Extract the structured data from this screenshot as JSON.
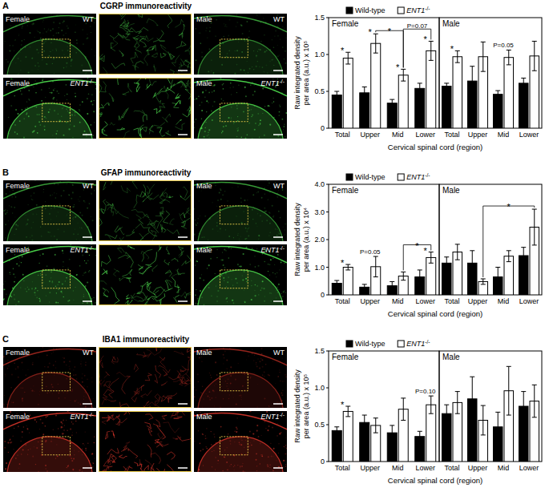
{
  "chart_data": [
    {
      "type": "bar",
      "title": "Female",
      "categories": [
        "Total",
        "Upper",
        "Mid",
        "Lower"
      ],
      "series": [
        {
          "name": "Wild-type",
          "color": "#000000",
          "values": [
            0.45,
            0.48,
            0.34,
            0.54
          ],
          "errors": [
            0.05,
            0.08,
            0.05,
            0.07
          ]
        },
        {
          "name": "ENT1-/-",
          "color": "#ffffff",
          "values": [
            0.95,
            1.15,
            0.72,
            1.05
          ],
          "errors": [
            0.08,
            0.13,
            0.08,
            0.13
          ]
        }
      ],
      "ylim": [
        0,
        1.5
      ],
      "yticks": [
        0,
        0.5,
        {
          "value": 1,
          "label": "1.0"
        },
        1.5
      ],
      "ylabel": [
        "Raw integrated density",
        "per area (a.u.) x 10⁵"
      ],
      "xlabel": "Cervical spinal cord (region)",
      "legend": "top",
      "annotations": [
        {
          "text": "*",
          "from": [
            0,
            0
          ],
          "to": [
            0,
            1
          ]
        },
        {
          "text": "*",
          "from": [
            1,
            0
          ],
          "to": [
            1,
            1
          ]
        },
        {
          "text": "*",
          "from": [
            2,
            0
          ],
          "to": [
            2,
            1
          ]
        },
        {
          "text": "*",
          "from": [
            3,
            0
          ],
          "to": [
            3,
            1
          ]
        },
        {
          "text": "*",
          "from": [
            1,
            1
          ],
          "to": [
            2,
            1
          ]
        },
        {
          "text": "P=0.07",
          "from": [
            2,
            1
          ],
          "to": [
            3,
            1
          ]
        }
      ]
    },
    {
      "type": "bar",
      "title": "Male",
      "categories": [
        "Total",
        "Upper",
        "Mid",
        "Lower"
      ],
      "series": [
        {
          "name": "Wild-type",
          "color": "#000000",
          "values": [
            0.57,
            0.64,
            0.46,
            0.61
          ],
          "errors": [
            0.04,
            0.2,
            0.05,
            0.07
          ]
        },
        {
          "name": "ENT1-/-",
          "color": "#ffffff",
          "values": [
            0.97,
            0.97,
            0.96,
            0.98
          ],
          "errors": [
            0.08,
            0.2,
            0.1,
            0.2
          ]
        }
      ],
      "ylim": [
        0,
        1.5
      ],
      "tick_labels": "x",
      "annotations": [
        {
          "text": "*",
          "from": [
            0,
            0
          ],
          "to": [
            0,
            1
          ]
        },
        {
          "text": "P=0.05",
          "from": [
            2,
            0
          ],
          "to": [
            2,
            1
          ]
        }
      ]
    },
    {
      "type": "bar",
      "title": "Female",
      "categories": [
        "Total",
        "Upper",
        "Mid",
        "Lower"
      ],
      "series": [
        {
          "name": "Wild-type",
          "color": "#000000",
          "values": [
            0.42,
            0.28,
            0.33,
            0.65
          ],
          "errors": [
            0.1,
            0.1,
            0.15,
            0.25
          ]
        },
        {
          "name": "ENT1-/-",
          "color": "#ffffff",
          "values": [
            1.0,
            1.02,
            0.68,
            1.35
          ],
          "errors": [
            0.1,
            0.37,
            0.15,
            0.2
          ]
        }
      ],
      "ylim": [
        0,
        4
      ],
      "yticks": [
        0,
        {
          "value": 1,
          "label": "1.0"
        },
        {
          "value": 2,
          "label": "2.0"
        },
        {
          "value": 3,
          "label": "3.0"
        },
        {
          "value": 4,
          "label": "4.0"
        }
      ],
      "ylabel": [
        "Raw integrated density",
        "per area (a.u.) x 10⁴"
      ],
      "xlabel": "Cervical spinal cord (region)",
      "legend": "top",
      "annotations": [
        {
          "text": "*",
          "from": [
            0,
            0
          ],
          "to": [
            0,
            1
          ]
        },
        {
          "text": "P=0.05",
          "from": [
            1,
            0
          ],
          "to": [
            1,
            1
          ]
        },
        {
          "text": "*",
          "from": [
            3,
            0
          ],
          "to": [
            3,
            1
          ]
        },
        {
          "text": "*",
          "from": [
            2,
            1
          ],
          "to": [
            3,
            1
          ]
        }
      ]
    },
    {
      "type": "bar",
      "title": "Male",
      "categories": [
        "Total",
        "Upper",
        "Mid",
        "Lower"
      ],
      "series": [
        {
          "name": "Wild-type",
          "color": "#000000",
          "values": [
            1.15,
            1.15,
            0.65,
            1.42
          ],
          "errors": [
            0.22,
            0.45,
            0.35,
            0.3
          ]
        },
        {
          "name": "ENT1-/-",
          "color": "#ffffff",
          "values": [
            1.55,
            0.48,
            1.4,
            2.45
          ],
          "errors": [
            0.28,
            0.1,
            0.2,
            0.65
          ]
        }
      ],
      "ylim": [
        0,
        4
      ],
      "tick_labels": "x",
      "annotations": [
        {
          "text": "*",
          "from": [
            1,
            1
          ],
          "to": [
            3,
            1
          ]
        }
      ]
    },
    {
      "type": "bar",
      "title": "Female",
      "categories": [
        "Total",
        "Upper",
        "Mid",
        "Lower"
      ],
      "series": [
        {
          "name": "Wild-type",
          "color": "#000000",
          "values": [
            0.42,
            0.53,
            0.39,
            0.34
          ],
          "errors": [
            0.05,
            0.1,
            0.1,
            0.07
          ]
        },
        {
          "name": "ENT1-/-",
          "color": "#ffffff",
          "values": [
            0.68,
            0.49,
            0.71,
            0.77
          ],
          "errors": [
            0.07,
            0.1,
            0.15,
            0.12
          ]
        }
      ],
      "ylim": [
        0,
        1.5
      ],
      "yticks": [
        0,
        0.5,
        {
          "value": 1,
          "label": "1.0"
        },
        1.5
      ],
      "ylabel": [
        "Raw integrated density",
        "per area (a.u.) x 10⁵"
      ],
      "xlabel": "Cervical spinal cord (region)",
      "legend": "top",
      "annotations": [
        {
          "text": "*",
          "from": [
            0,
            0
          ],
          "to": [
            0,
            1
          ]
        },
        {
          "text": "P=0.10",
          "from": [
            3,
            0
          ],
          "to": [
            3,
            1
          ]
        }
      ]
    },
    {
      "type": "bar",
      "title": "Male",
      "categories": [
        "Total",
        "Upper",
        "Mid",
        "Lower"
      ],
      "series": [
        {
          "name": "Wild-type",
          "color": "#000000",
          "values": [
            0.65,
            0.85,
            0.47,
            0.75
          ],
          "errors": [
            0.12,
            0.3,
            0.2,
            0.2
          ]
        },
        {
          "name": "ENT1-/-",
          "color": "#ffffff",
          "values": [
            0.8,
            0.56,
            0.96,
            0.82
          ],
          "errors": [
            0.15,
            0.2,
            0.33,
            0.22
          ]
        }
      ],
      "ylim": [
        0,
        1.5
      ],
      "tick_labels": "x",
      "annotations": []
    }
  ],
  "figure": {
    "panels": [
      {
        "letter": "A",
        "title": "CGRP immunoreactivity",
        "color": "#4fe04f",
        "images": [
          [
            "Female",
            "WT"
          ],
          [
            "Female",
            "ENT1-/-"
          ],
          [
            "Male",
            "WT"
          ],
          [
            "Male",
            "ENT1-/-"
          ]
        ]
      },
      {
        "letter": "B",
        "title": "GFAP immunoreactivity",
        "color": "#4fe04f",
        "images": [
          [
            "Female",
            "WT"
          ],
          [
            "Female",
            "ENT1-/-"
          ],
          [
            "Male",
            "WT"
          ],
          [
            "Male",
            "ENT1-/-"
          ]
        ]
      },
      {
        "letter": "C",
        "title": "IBA1 immunoreactivity",
        "color": "#d8352a",
        "images": [
          [
            "Female",
            "WT"
          ],
          [
            "Female",
            "ENT1-/-"
          ],
          [
            "Male",
            "WT"
          ],
          [
            "Male",
            "ENT1-/-"
          ]
        ]
      }
    ]
  }
}
